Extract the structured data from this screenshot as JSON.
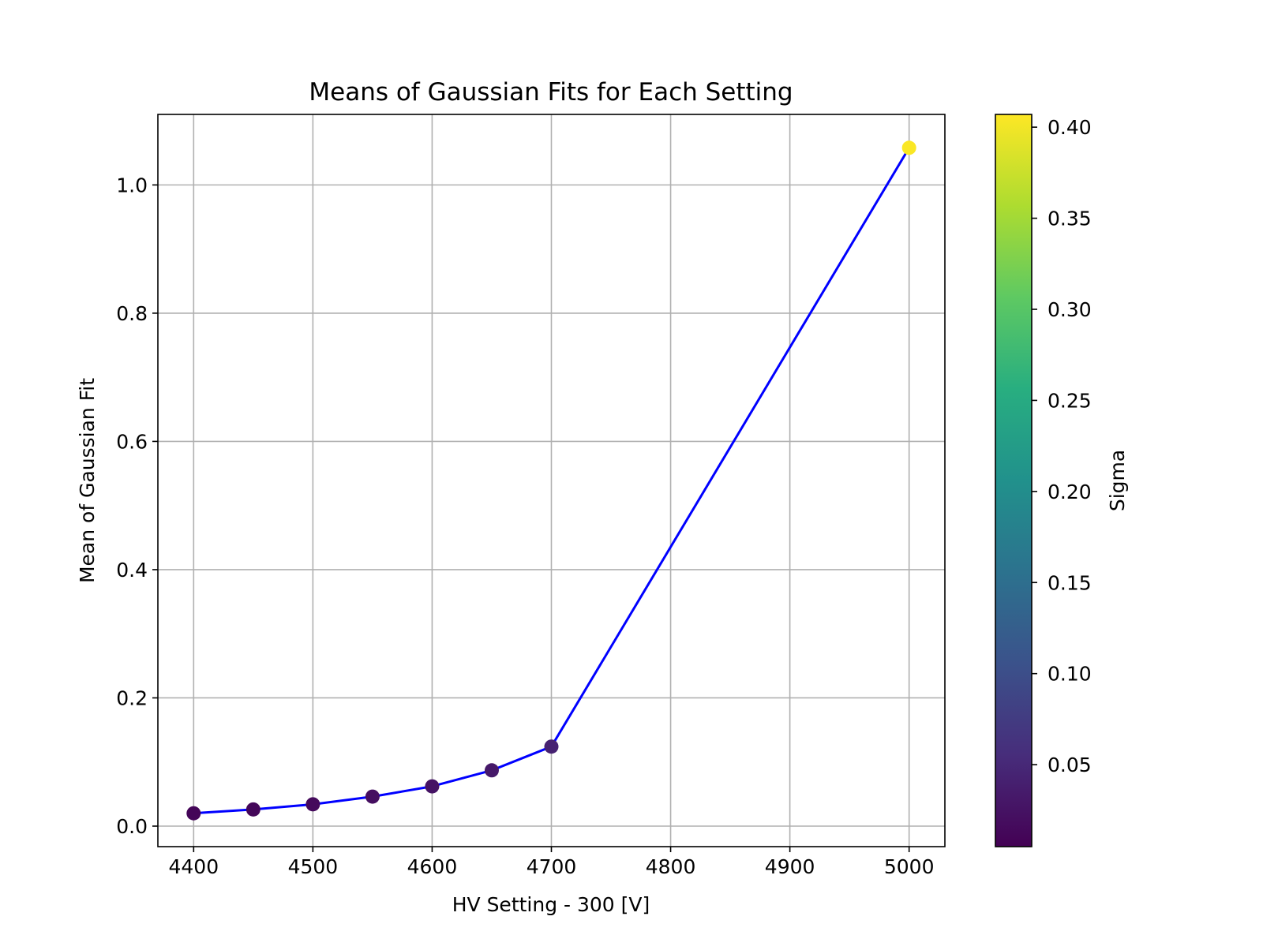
{
  "chart_data": {
    "type": "scatter",
    "title": "Means of Gaussian Fits for Each Setting",
    "xlabel": "HV Setting - 300 [V]",
    "ylabel": "Mean of Gaussian Fit",
    "xlim": [
      4370,
      5030
    ],
    "ylim": [
      -0.032,
      1.11
    ],
    "xticks": [
      4400,
      4500,
      4600,
      4700,
      4800,
      4900,
      5000
    ],
    "xtick_labels": [
      "4400",
      "4500",
      "4600",
      "4700",
      "4800",
      "4900",
      "5000"
    ],
    "yticks": [
      0.0,
      0.2,
      0.4,
      0.6,
      0.8,
      1.0
    ],
    "ytick_labels": [
      "0.0",
      "0.2",
      "0.4",
      "0.6",
      "0.8",
      "1.0"
    ],
    "grid": true,
    "line_color": "#0000ff",
    "colormap": "viridis",
    "colorbar": {
      "label": "Sigma",
      "range": [
        0.005,
        0.407
      ],
      "ticks": [
        0.05,
        0.1,
        0.15,
        0.2,
        0.25,
        0.3,
        0.35,
        0.4
      ],
      "tick_labels": [
        "0.05",
        "0.10",
        "0.15",
        "0.20",
        "0.25",
        "0.30",
        "0.35",
        "0.40"
      ]
    },
    "x": [
      4400,
      4450,
      4500,
      4550,
      4600,
      4650,
      4700,
      5000
    ],
    "y": [
      0.02,
      0.026,
      0.034,
      0.046,
      0.062,
      0.087,
      0.124,
      1.058
    ],
    "sigma": [
      0.01,
      0.012,
      0.015,
      0.02,
      0.025,
      0.032,
      0.042,
      0.405
    ]
  }
}
